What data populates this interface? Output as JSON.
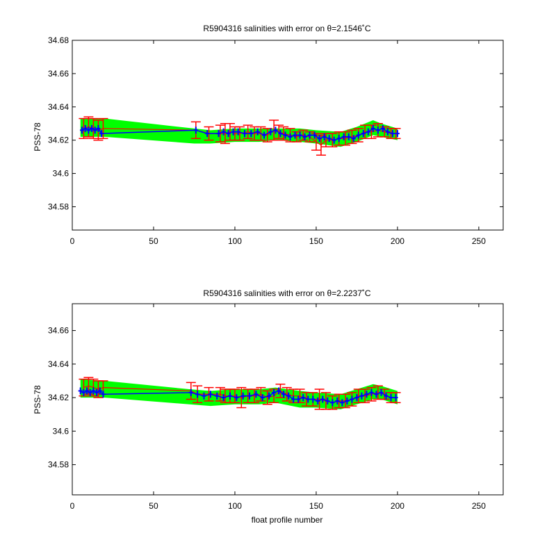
{
  "chart_data": [
    {
      "type": "line",
      "title": "R5904316 salinities with error on θ=2.1546˚C",
      "xlabel": "",
      "ylabel": "PSS-78",
      "xlim": [
        0,
        265
      ],
      "ylim": [
        34.566,
        34.68
      ],
      "xticks": [
        0,
        50,
        100,
        150,
        200,
        250
      ],
      "xtick_labels": [
        "0",
        "50",
        "100",
        "150",
        "200",
        "250"
      ],
      "yticks": [
        34.58,
        34.6,
        34.62,
        34.64,
        34.66,
        34.68
      ],
      "ytick_labels": [
        "34.58",
        "34.6",
        "34.62",
        "34.64",
        "34.66",
        "34.68"
      ],
      "grid": false,
      "band": {
        "name": "",
        "color": "#00ff00",
        "x": [
          5,
          20,
          75,
          85,
          100,
          115,
          125,
          140,
          150,
          165,
          175,
          185,
          190,
          200
        ],
        "upper": [
          34.633,
          34.633,
          34.627,
          34.626,
          34.627,
          34.627,
          34.627,
          34.627,
          34.626,
          34.625,
          34.628,
          34.632,
          34.63,
          34.627
        ],
        "lower": [
          34.622,
          34.622,
          34.618,
          34.618,
          34.619,
          34.619,
          34.62,
          34.619,
          34.618,
          34.616,
          34.619,
          34.623,
          34.622,
          34.62
        ]
      },
      "error_series": {
        "color": "#ff0000",
        "x": [
          7,
          10,
          13,
          16,
          19,
          76,
          84,
          91,
          94,
          97,
          100,
          103,
          108,
          112,
          116,
          120,
          124,
          127,
          130,
          134,
          138,
          142,
          146,
          150,
          153,
          156,
          160,
          164,
          168,
          172,
          176,
          180,
          184,
          188,
          192,
          196,
          199
        ],
        "values": [
          34.627,
          34.628,
          34.627,
          34.626,
          34.627,
          34.626,
          34.624,
          34.624,
          34.624,
          34.625,
          34.624,
          34.624,
          34.625,
          34.624,
          34.624,
          34.623,
          34.626,
          34.625,
          34.624,
          34.623,
          34.622,
          34.623,
          34.622,
          34.619,
          34.617,
          34.62,
          34.62,
          34.621,
          34.621,
          34.622,
          34.623,
          34.625,
          34.625,
          34.626,
          34.625,
          34.624,
          34.624
        ],
        "errors": [
          0.006,
          0.006,
          0.006,
          0.006,
          0.006,
          0.005,
          0.004,
          0.005,
          0.006,
          0.005,
          0.004,
          0.004,
          0.004,
          0.004,
          0.004,
          0.004,
          0.006,
          0.004,
          0.004,
          0.004,
          0.003,
          0.003,
          0.003,
          0.005,
          0.006,
          0.004,
          0.004,
          0.004,
          0.004,
          0.004,
          0.004,
          0.004,
          0.004,
          0.004,
          0.003,
          0.003,
          0.003
        ]
      },
      "series": [
        {
          "color": "#0000ff",
          "x": [
            6,
            8,
            10,
            12,
            14,
            16,
            18,
            76,
            83,
            90,
            93,
            96,
            99,
            102,
            106,
            110,
            114,
            118,
            122,
            125,
            128,
            131,
            134,
            137,
            140,
            143,
            146,
            149,
            152,
            155,
            158,
            161,
            164,
            167,
            170,
            173,
            176,
            179,
            182,
            185,
            188,
            191,
            194,
            197,
            200
          ],
          "values": [
            34.626,
            34.627,
            34.626,
            34.627,
            34.626,
            34.627,
            34.624,
            34.626,
            34.624,
            34.624,
            34.625,
            34.624,
            34.625,
            34.625,
            34.624,
            34.624,
            34.625,
            34.623,
            34.625,
            34.626,
            34.624,
            34.623,
            34.622,
            34.623,
            34.623,
            34.622,
            34.623,
            34.623,
            34.621,
            34.622,
            34.621,
            34.62,
            34.621,
            34.622,
            34.622,
            34.621,
            34.623,
            34.624,
            34.625,
            34.627,
            34.626,
            34.627,
            34.625,
            34.624,
            34.624
          ]
        }
      ]
    },
    {
      "type": "line",
      "title": "R5904316 salinities with error on θ=2.2237˚C",
      "xlabel": "float profile number",
      "ylabel": "PSS-78",
      "xlim": [
        0,
        265
      ],
      "ylim": [
        34.562,
        34.676
      ],
      "xticks": [
        0,
        50,
        100,
        150,
        200,
        250
      ],
      "xtick_labels": [
        "0",
        "50",
        "100",
        "150",
        "200",
        "250"
      ],
      "yticks": [
        34.58,
        34.6,
        34.62,
        34.64,
        34.66
      ],
      "ytick_labels": [
        "34.58",
        "34.6",
        "34.62",
        "34.64",
        "34.66"
      ],
      "grid": false,
      "band": {
        "name": "",
        "color": "#00ff00",
        "x": [
          5,
          20,
          72,
          85,
          100,
          115,
          125,
          140,
          150,
          165,
          175,
          185,
          190,
          200
        ],
        "upper": [
          34.631,
          34.63,
          34.625,
          34.624,
          34.625,
          34.625,
          34.626,
          34.624,
          34.623,
          34.622,
          34.625,
          34.628,
          34.627,
          34.624
        ],
        "lower": [
          34.62,
          34.62,
          34.616,
          34.615,
          34.616,
          34.616,
          34.617,
          34.614,
          34.614,
          34.613,
          34.616,
          34.619,
          34.619,
          34.616
        ]
      },
      "error_series": {
        "color": "#ff0000",
        "x": [
          7,
          10,
          13,
          16,
          19,
          73,
          77,
          84,
          91,
          94,
          97,
          100,
          104,
          108,
          112,
          116,
          120,
          124,
          128,
          132,
          136,
          140,
          144,
          148,
          152,
          156,
          160,
          164,
          168,
          172,
          176,
          180,
          184,
          188,
          192,
          196,
          199
        ],
        "values": [
          34.626,
          34.627,
          34.626,
          34.625,
          34.626,
          34.624,
          34.622,
          34.622,
          34.622,
          34.621,
          34.621,
          34.621,
          34.62,
          34.621,
          34.621,
          34.622,
          34.62,
          34.621,
          34.624,
          34.622,
          34.621,
          34.621,
          34.619,
          34.619,
          34.619,
          34.618,
          34.617,
          34.618,
          34.618,
          34.619,
          34.621,
          34.621,
          34.622,
          34.623,
          34.622,
          34.62,
          34.62
        ],
        "errors": [
          0.005,
          0.005,
          0.005,
          0.005,
          0.004,
          0.005,
          0.005,
          0.004,
          0.004,
          0.004,
          0.004,
          0.004,
          0.006,
          0.004,
          0.004,
          0.004,
          0.004,
          0.004,
          0.004,
          0.004,
          0.004,
          0.004,
          0.004,
          0.004,
          0.006,
          0.005,
          0.004,
          0.004,
          0.004,
          0.004,
          0.004,
          0.004,
          0.004,
          0.004,
          0.003,
          0.003,
          0.003
        ]
      },
      "series": [
        {
          "color": "#0000ff",
          "x": [
            5,
            7,
            9,
            11,
            13,
            15,
            17,
            19,
            73,
            77,
            81,
            85,
            89,
            93,
            97,
            101,
            105,
            109,
            113,
            117,
            121,
            124,
            127,
            130,
            133,
            136,
            139,
            142,
            145,
            148,
            151,
            154,
            157,
            160,
            163,
            166,
            169,
            172,
            175,
            178,
            181,
            184,
            187,
            190,
            193,
            196,
            199
          ],
          "values": [
            34.624,
            34.623,
            34.624,
            34.623,
            34.624,
            34.623,
            34.624,
            34.622,
            34.623,
            34.622,
            34.621,
            34.622,
            34.621,
            34.62,
            34.621,
            34.62,
            34.621,
            34.621,
            34.622,
            34.62,
            34.621,
            34.623,
            34.624,
            34.622,
            34.621,
            34.619,
            34.619,
            34.62,
            34.619,
            34.619,
            34.618,
            34.619,
            34.618,
            34.617,
            34.618,
            34.617,
            34.618,
            34.619,
            34.62,
            34.621,
            34.622,
            34.623,
            34.622,
            34.623,
            34.621,
            34.62,
            34.62
          ]
        }
      ]
    }
  ]
}
